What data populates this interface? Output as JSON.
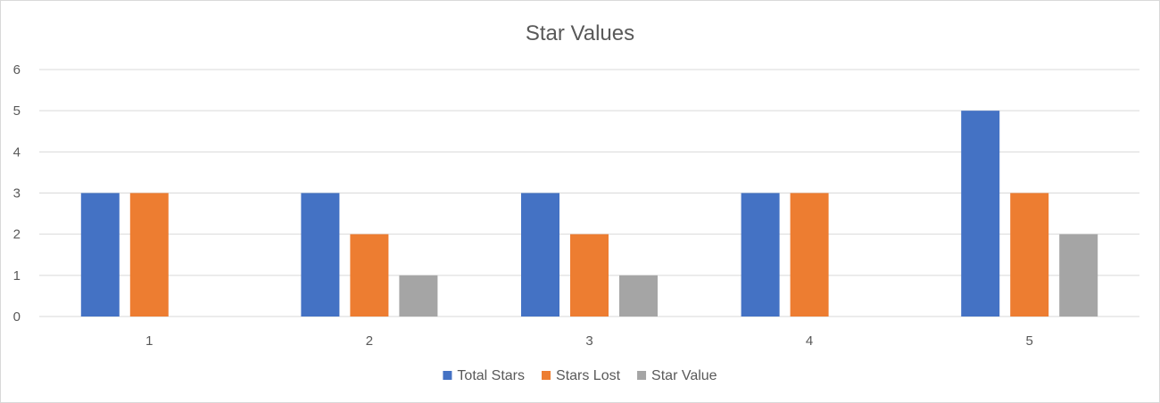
{
  "chart_data": {
    "type": "bar",
    "title": "Star Values",
    "xlabel": "",
    "ylabel": "",
    "categories": [
      "1",
      "2",
      "3",
      "4",
      "5"
    ],
    "series": [
      {
        "name": "Total Stars",
        "color": "#4472C4",
        "values": [
          3,
          3,
          3,
          3,
          5
        ]
      },
      {
        "name": "Stars Lost",
        "color": "#ED7D31",
        "values": [
          3,
          2,
          2,
          3,
          3
        ]
      },
      {
        "name": "Star Value",
        "color": "#A5A5A5",
        "values": [
          0,
          1,
          1,
          0,
          2
        ]
      }
    ],
    "ylim": [
      0,
      6
    ],
    "yticks": [
      "0",
      "1",
      "2",
      "3",
      "4",
      "5",
      "6"
    ],
    "grid": true,
    "legend_position": "bottom"
  }
}
